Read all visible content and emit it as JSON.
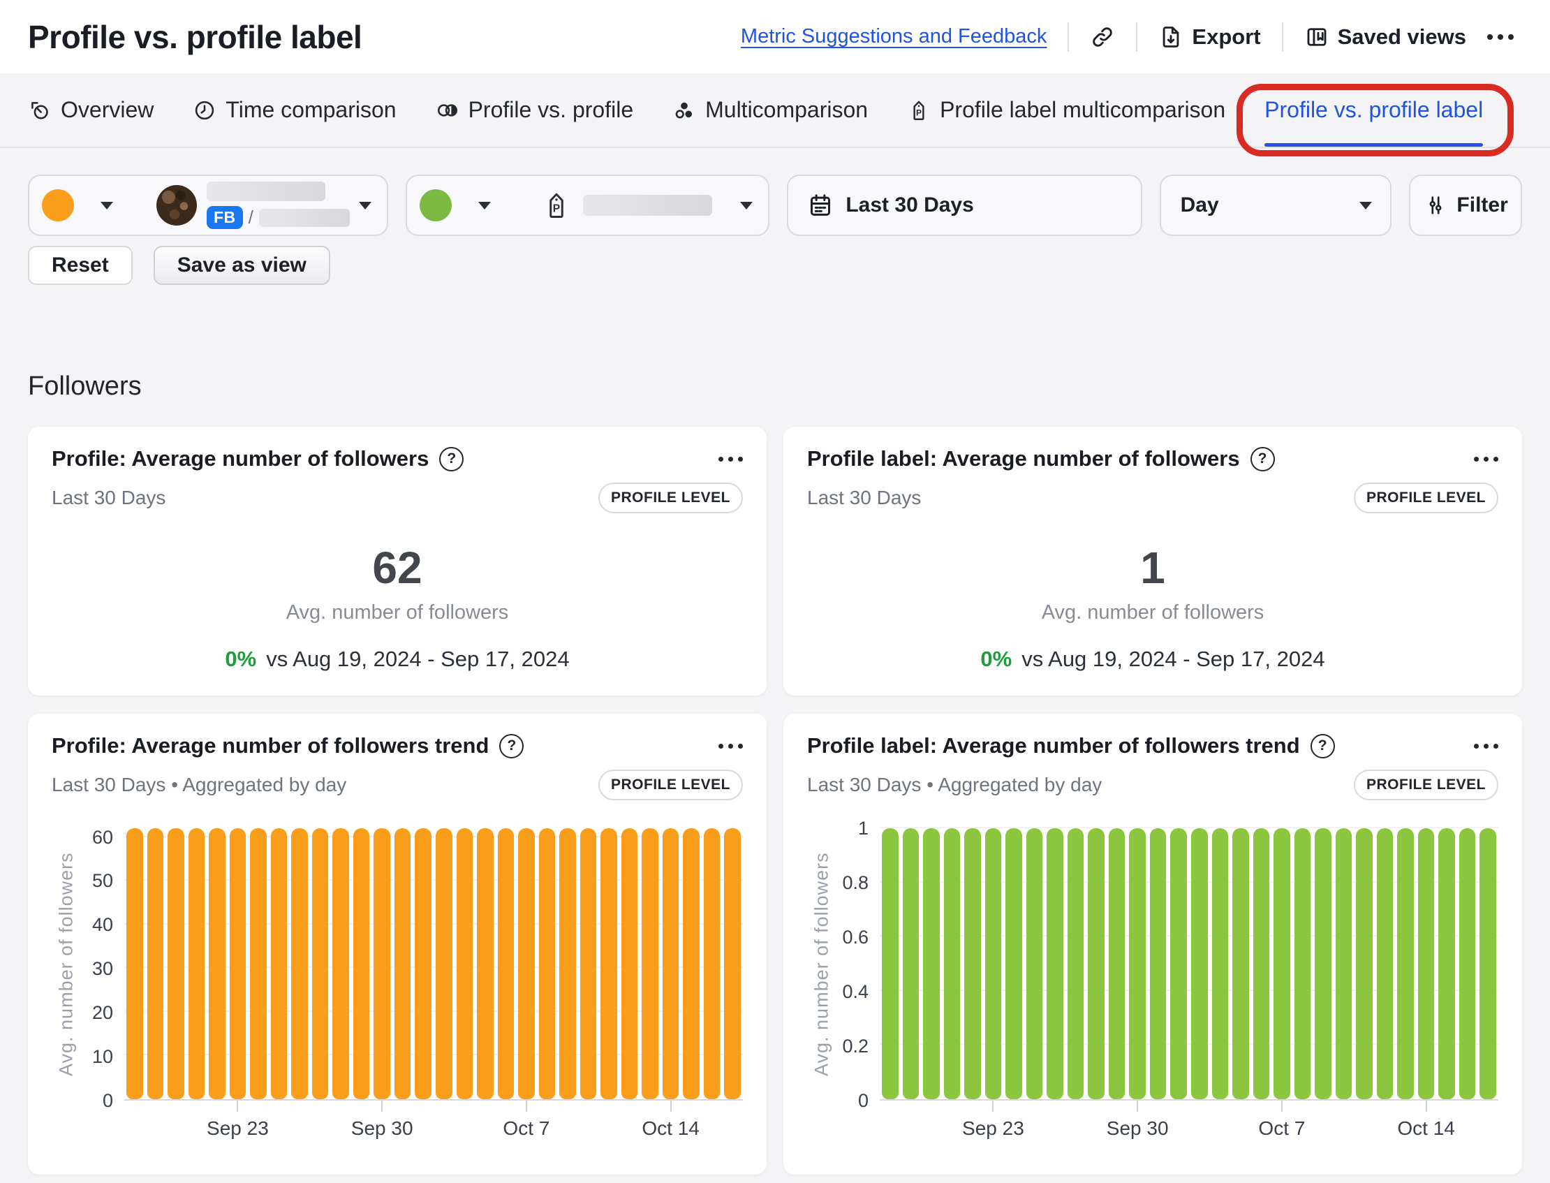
{
  "header": {
    "title": "Profile vs. profile label",
    "feedback_link": "Metric Suggestions and Feedback",
    "export_label": "Export",
    "saved_views_label": "Saved views"
  },
  "tabs": [
    {
      "label": "Overview",
      "active": false
    },
    {
      "label": "Time comparison",
      "active": false
    },
    {
      "label": "Profile vs. profile",
      "active": false
    },
    {
      "label": "Multicomparison",
      "active": false
    },
    {
      "label": "Profile label multicomparison",
      "active": false
    },
    {
      "label": "Profile vs. profile label",
      "active": true
    }
  ],
  "annotation": {
    "color": "#d92b21",
    "shape": "rounded-rect-circle around active tab"
  },
  "filters": {
    "profile_selector": {
      "swatch_color": "#F89E1B",
      "network_badge": "FB",
      "separator": "/",
      "name_redacted": true
    },
    "label_selector": {
      "swatch_color": "#7CB943",
      "name_redacted": true
    },
    "date_range": {
      "value": "Last 30 Days"
    },
    "granularity": {
      "value": "Day"
    },
    "filter_button": {
      "label": "Filter"
    }
  },
  "actions": {
    "reset": "Reset",
    "save_as_view": "Save as view"
  },
  "section": {
    "title": "Followers"
  },
  "cards": {
    "kpi": [
      {
        "title": "Profile: Average number of followers",
        "period": "Last 30 Days",
        "badge": "PROFILE LEVEL",
        "value": "62",
        "value_label": "Avg. number of followers",
        "delta": "0%",
        "delta_note": "vs Aug 19, 2024 - Sep 17, 2024"
      },
      {
        "title": "Profile label: Average number of followers",
        "period": "Last 30 Days",
        "badge": "PROFILE LEVEL",
        "value": "1",
        "value_label": "Avg. number of followers",
        "delta": "0%",
        "delta_note": "vs Aug 19, 2024 - Sep 17, 2024"
      }
    ],
    "trend": [
      {
        "title": "Profile: Average number of followers trend",
        "period": "Last 30 Days • Aggregated by day",
        "badge": "PROFILE LEVEL"
      },
      {
        "title": "Profile label: Average number of followers trend",
        "period": "Last 30 Days • Aggregated by day",
        "badge": "PROFILE LEVEL"
      }
    ]
  },
  "chart_data": [
    {
      "type": "bar",
      "title": "Profile: Average number of followers trend",
      "ylabel": "Avg. number of followers",
      "color": "#F89E1B",
      "ymax": 62,
      "ylim": [
        0,
        62
      ],
      "grid": "faint horizontal",
      "y_ticks": [
        {
          "value": 0,
          "label": "0"
        },
        {
          "value": 10,
          "label": "10"
        },
        {
          "value": 20,
          "label": "20"
        },
        {
          "value": 30,
          "label": "30"
        },
        {
          "value": 40,
          "label": "40"
        },
        {
          "value": 50,
          "label": "50"
        },
        {
          "value": 60,
          "label": "60"
        }
      ],
      "categories": [
        "Sep 18",
        "Sep 19",
        "Sep 20",
        "Sep 21",
        "Sep 22",
        "Sep 23",
        "Sep 24",
        "Sep 25",
        "Sep 26",
        "Sep 27",
        "Sep 28",
        "Sep 29",
        "Sep 30",
        "Oct 1",
        "Oct 2",
        "Oct 3",
        "Oct 4",
        "Oct 5",
        "Oct 6",
        "Oct 7",
        "Oct 8",
        "Oct 9",
        "Oct 10",
        "Oct 11",
        "Oct 12",
        "Oct 13",
        "Oct 14",
        "Oct 15",
        "Oct 16",
        "Oct 17"
      ],
      "values": [
        62,
        62,
        62,
        62,
        62,
        62,
        62,
        62,
        62,
        62,
        62,
        62,
        62,
        62,
        62,
        62,
        62,
        62,
        62,
        62,
        62,
        62,
        62,
        62,
        62,
        62,
        62,
        62,
        62,
        62
      ],
      "x_ticks": [
        {
          "index": 5,
          "label": "Sep 23"
        },
        {
          "index": 12,
          "label": "Sep 30"
        },
        {
          "index": 19,
          "label": "Oct 7"
        },
        {
          "index": 26,
          "label": "Oct 14"
        }
      ]
    },
    {
      "type": "bar",
      "title": "Profile label: Average number of followers trend",
      "ylabel": "Avg. number of followers",
      "color": "#8CC63E",
      "ymax": 1,
      "ylim": [
        0,
        1
      ],
      "grid": "faint horizontal",
      "y_ticks": [
        {
          "value": 0,
          "label": "0"
        },
        {
          "value": 0.2,
          "label": "0.2"
        },
        {
          "value": 0.4,
          "label": "0.4"
        },
        {
          "value": 0.6,
          "label": "0.6"
        },
        {
          "value": 0.8,
          "label": "0.8"
        },
        {
          "value": 1,
          "label": "1"
        }
      ],
      "categories": [
        "Sep 18",
        "Sep 19",
        "Sep 20",
        "Sep 21",
        "Sep 22",
        "Sep 23",
        "Sep 24",
        "Sep 25",
        "Sep 26",
        "Sep 27",
        "Sep 28",
        "Sep 29",
        "Sep 30",
        "Oct 1",
        "Oct 2",
        "Oct 3",
        "Oct 4",
        "Oct 5",
        "Oct 6",
        "Oct 7",
        "Oct 8",
        "Oct 9",
        "Oct 10",
        "Oct 11",
        "Oct 12",
        "Oct 13",
        "Oct 14",
        "Oct 15",
        "Oct 16",
        "Oct 17"
      ],
      "values": [
        1,
        1,
        1,
        1,
        1,
        1,
        1,
        1,
        1,
        1,
        1,
        1,
        1,
        1,
        1,
        1,
        1,
        1,
        1,
        1,
        1,
        1,
        1,
        1,
        1,
        1,
        1,
        1,
        1,
        1
      ],
      "x_ticks": [
        {
          "index": 5,
          "label": "Sep 23"
        },
        {
          "index": 12,
          "label": "Sep 30"
        },
        {
          "index": 19,
          "label": "Oct 7"
        },
        {
          "index": 26,
          "label": "Oct 14"
        }
      ]
    }
  ]
}
